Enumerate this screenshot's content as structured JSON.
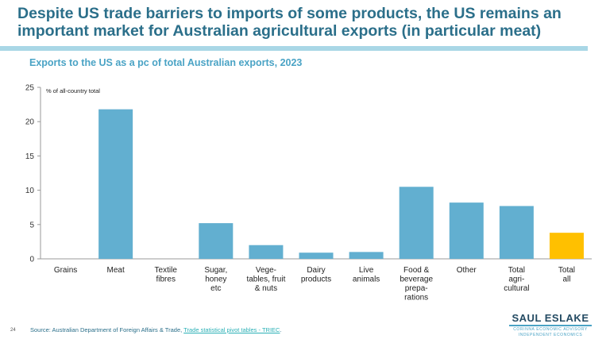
{
  "slide": {
    "title": "Despite US trade barriers to imports of some products, the US remains an important market for Australian agricultural exports (in particular meat)",
    "page_number": "24",
    "source_prefix": "Source: Australian Department of Foreign Affairs & Trade, ",
    "source_link": "Trade statistical pivot tables - TRIEC",
    "source_suffix": ".",
    "logo": {
      "main": "SAUL ESLAKE",
      "line1": "CORINNA ECONOMIC ADVISORY",
      "line2": "INDEPENDENT ECONOMICS"
    }
  },
  "colors": {
    "bar": "#62afd0",
    "highlight": "#ffc000",
    "axis": "#999999",
    "title": "#2b6f8a",
    "subtitle": "#4aa3c5"
  },
  "chart_data": {
    "type": "bar",
    "title": "Exports to the US as a pc of total Australian exports, 2023",
    "ylabel": "% of all-country total",
    "xlabel": "",
    "ylim": [
      0,
      25
    ],
    "yticks": [
      0,
      5,
      10,
      15,
      20,
      25
    ],
    "grid": false,
    "categories": [
      [
        "Grains"
      ],
      [
        "Meat"
      ],
      [
        "Textile",
        "fibres"
      ],
      [
        "Sugar,",
        "honey",
        "etc"
      ],
      [
        "Vege-",
        "tables, fruit",
        "& nuts"
      ],
      [
        "Dairy",
        "products"
      ],
      [
        "Live",
        "animals"
      ],
      [
        "Food &",
        "beverage",
        "prepa-",
        "rations"
      ],
      [
        "Other"
      ],
      [
        "Total",
        "agri-",
        "cultural"
      ],
      [
        "Total",
        "all"
      ]
    ],
    "values": [
      0,
      21.8,
      0,
      5.2,
      2.0,
      0.9,
      1.0,
      10.5,
      8.2,
      7.7,
      3.8
    ],
    "highlight_index": 10
  }
}
